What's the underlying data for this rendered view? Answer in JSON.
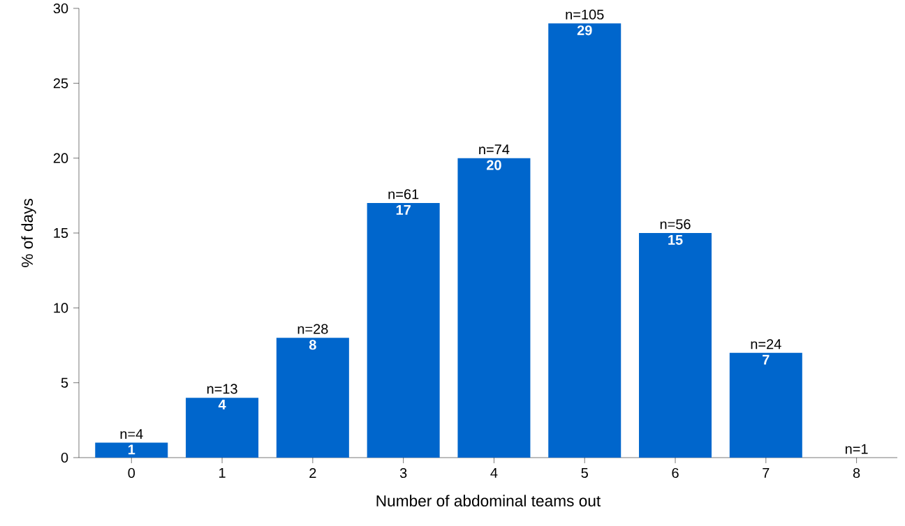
{
  "chart_data": {
    "type": "bar",
    "xlabel": "Number of abdominal teams out",
    "ylabel": "% of days",
    "categories": [
      "0",
      "1",
      "2",
      "3",
      "4",
      "5",
      "6",
      "7",
      "8"
    ],
    "values": [
      1,
      4,
      8,
      17,
      20,
      29,
      15,
      7,
      0
    ],
    "value_labels": [
      "1",
      "4",
      "8",
      "17",
      "20",
      "29",
      "15",
      "7",
      null
    ],
    "color": "#0066cc",
    "ylim": [
      0,
      30
    ],
    "yticks": [
      0,
      5,
      10,
      15,
      20,
      25,
      30
    ],
    "grid": false,
    "annotations": [
      {
        "text": "n=4",
        "x": "0",
        "y": 1
      },
      {
        "text": "n=13",
        "x": "1",
        "y": 4
      },
      {
        "text": "n=28",
        "x": "2",
        "y": 8
      },
      {
        "text": "n=61",
        "x": "3",
        "y": 17
      },
      {
        "text": "n=74",
        "x": "4",
        "y": 20
      },
      {
        "text": "n=105",
        "x": "5",
        "y": 29
      },
      {
        "text": "n=56",
        "x": "6",
        "y": 15
      },
      {
        "text": "n=24",
        "x": "7",
        "y": 7
      },
      {
        "text": "n=1",
        "x": "8",
        "y": 0
      }
    ]
  }
}
